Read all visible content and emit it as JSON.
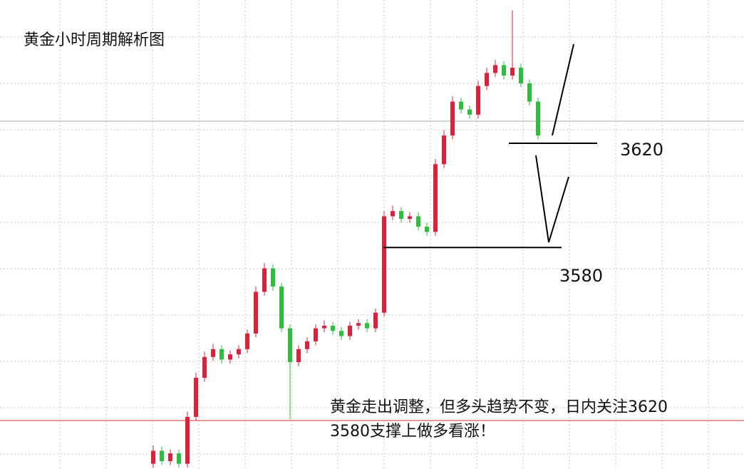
{
  "chart_data": {
    "type": "candlestick",
    "title": "黄金小时周期解析图",
    "annotation": [
      "黄金走出调整，但多头趋势不变，日内关注3620",
      "3580支撑上做多看涨！"
    ],
    "levels": [
      3620,
      3580
    ],
    "ylim": [
      3495,
      3675
    ],
    "up_color": "#e0203a",
    "down_color": "#2bbf3a",
    "open": [
      3497,
      3502,
      3498,
      3501,
      3497,
      3515,
      3530,
      3538,
      3541,
      3537,
      3539,
      3541,
      3547,
      3563,
      3572,
      3565,
      3549,
      3536,
      3541,
      3544,
      3549,
      3550,
      3548,
      3546,
      3550,
      3551,
      3549,
      3555,
      3592,
      3594,
      3591,
      3592,
      3588,
      3586,
      3612,
      3623,
      3636,
      3633,
      3631,
      3642,
      3647,
      3650,
      3646,
      3649,
      3643,
      3636
    ],
    "high": [
      3504,
      3503.5,
      3502.5,
      3502.5,
      3517,
      3532,
      3540,
      3543,
      3542.5,
      3540.5,
      3542.5,
      3548.5,
      3565,
      3574,
      3573.5,
      3566.5,
      3550.5,
      3542.5,
      3545.5,
      3550.5,
      3552,
      3551.5,
      3549.5,
      3551.5,
      3552.5,
      3552.5,
      3556.5,
      3594,
      3596,
      3595.5,
      3593.5,
      3593.5,
      3589.5,
      3614,
      3625,
      3638,
      3637.5,
      3634.5,
      3644,
      3649,
      3652,
      3651.5,
      3671,
      3650.5,
      3644.5,
      3637.5
    ],
    "low": [
      3495.5,
      3496.5,
      3496.5,
      3495.5,
      3495.5,
      3513.5,
      3528.5,
      3536.5,
      3535.5,
      3535.5,
      3537.5,
      3539.5,
      3545.5,
      3561.5,
      3563.5,
      3547.5,
      3514,
      3534.5,
      3539.5,
      3542.5,
      3547.5,
      3546.5,
      3544.5,
      3544.5,
      3548.5,
      3547.5,
      3547.5,
      3553.5,
      3590.5,
      3589.5,
      3589.5,
      3586.5,
      3584.5,
      3584.5,
      3610.5,
      3621.5,
      3631.5,
      3629.5,
      3629.5,
      3640.5,
      3645.5,
      3644.5,
      3644.5,
      3641.5,
      3634.5,
      3621.5
    ],
    "close": [
      3502,
      3498,
      3501,
      3497,
      3515,
      3530,
      3538,
      3541,
      3537,
      3539,
      3541,
      3547,
      3563,
      3572,
      3565,
      3549,
      3536,
      3541,
      3544,
      3549,
      3550,
      3548,
      3546,
      3550,
      3551,
      3549,
      3555,
      3592,
      3594,
      3591,
      3592,
      3588,
      3586,
      3612,
      3623,
      3636,
      3633,
      3631,
      3642,
      3647,
      3650,
      3646,
      3649,
      3643,
      3636,
      3623
    ]
  }
}
